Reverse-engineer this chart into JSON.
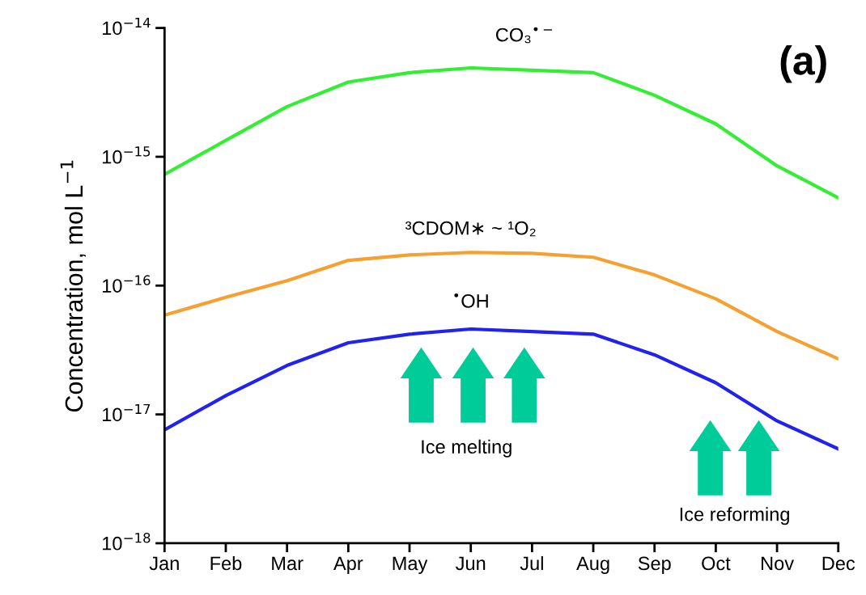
{
  "chart_data": {
    "type": "line",
    "ylabel": "Concentration, mol L$^{−1}$",
    "categories": [
      "Jan",
      "Feb",
      "Mar",
      "Apr",
      "May",
      "Jun",
      "Jul",
      "Aug",
      "Sep",
      "Oct",
      "Nov",
      "Dec"
    ],
    "series": [
      {
        "name": "CO₃$^{•−}$",
        "color": "#33ee33",
        "values": [
          7.3e-16,
          1.34e-15,
          2.45e-15,
          3.8e-15,
          4.5e-15,
          4.9e-15,
          4.7e-15,
          4.5e-15,
          3e-15,
          1.8e-15,
          8.5e-16,
          4.8e-16
        ]
      },
      {
        "name": "³CDOM∗ ~ ¹O₂",
        "color": "#f5a030",
        "values": [
          5.9e-17,
          8.1e-17,
          1.09e-16,
          1.57e-16,
          1.73e-16,
          1.81e-16,
          1.78e-16,
          1.66e-16,
          1.21e-16,
          7.9e-17,
          4.4e-17,
          2.7e-17
        ]
      },
      {
        "name": "$^{•}$OH",
        "color": "#2222ee",
        "values": [
          7.6e-18,
          1.4e-17,
          2.4e-17,
          3.6e-17,
          4.2e-17,
          4.6e-17,
          4.4e-17,
          4.2e-17,
          2.9e-17,
          1.76e-17,
          8.9e-18,
          5.4e-18
        ]
      }
    ],
    "log": "y",
    "ylim": [
      1e-18,
      1e-14
    ],
    "yticks": [
      {
        "value": 1e-18,
        "label": "10$^{−18}$"
      },
      {
        "value": 1e-17,
        "label": "10$^{−17}$"
      },
      {
        "value": 1e-16,
        "label": "10$^{−16}$"
      },
      {
        "value": 1e-15,
        "label": "10$^{−15}$"
      },
      {
        "value": 1e-14,
        "label": "10$^{−14}$"
      }
    ],
    "grid": false,
    "legend": false,
    "line_style": "solid",
    "marker": "none",
    "annotations": [
      "(a)",
      "Ice melting",
      "Ice reforming"
    ]
  }
}
